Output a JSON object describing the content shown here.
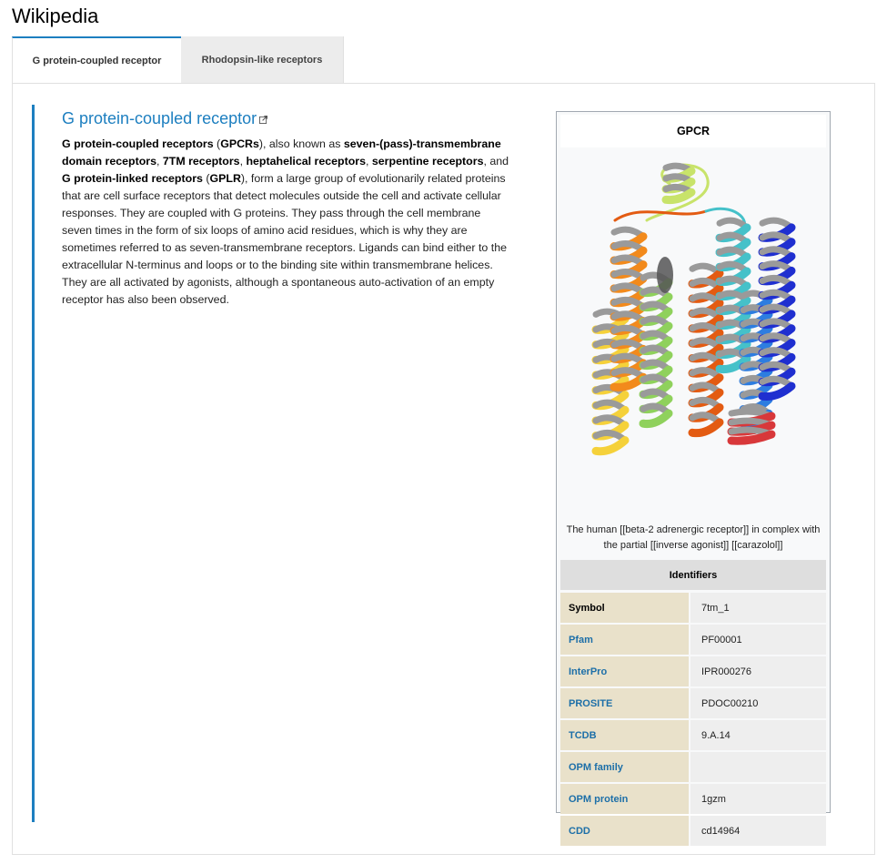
{
  "app": {
    "title": "Wikipedia"
  },
  "tabs": [
    {
      "label": "G protein-coupled receptor",
      "active": true
    },
    {
      "label": "Rhodopsin-like receptors",
      "active": false
    }
  ],
  "article": {
    "title": "G protein-coupled receptor",
    "body_parts": [
      {
        "t": "G protein-coupled receptors",
        "b": true
      },
      {
        "t": " (",
        "b": false
      },
      {
        "t": "GPCRs",
        "b": true
      },
      {
        "t": "), also known as ",
        "b": false
      },
      {
        "t": "seven-(pass)-transmembrane domain receptors",
        "b": true
      },
      {
        "t": ", ",
        "b": false
      },
      {
        "t": "7TM receptors",
        "b": true
      },
      {
        "t": ", ",
        "b": false
      },
      {
        "t": "heptahelical receptors",
        "b": true
      },
      {
        "t": ", ",
        "b": false
      },
      {
        "t": "serpentine receptors",
        "b": true
      },
      {
        "t": ", and ",
        "b": false
      },
      {
        "t": "G protein-linked receptors",
        "b": true
      },
      {
        "t": " (",
        "b": false
      },
      {
        "t": "GPLR",
        "b": true
      },
      {
        "t": "), form a large group of evolutionarily related proteins that are cell surface receptors that detect molecules outside the cell and activate cellular responses. They are coupled with G proteins. They pass through the cell membrane seven times in the form of six loops of amino acid residues, which is why they are sometimes referred to as seven-transmembrane receptors. Ligands can bind either to the extracellular N-terminus and loops or to the binding site within transmembrane helices. They are all activated by agonists, although a spontaneous auto-activation of an empty receptor has also been observed.",
        "b": false
      }
    ]
  },
  "infobox": {
    "title": "GPCR",
    "caption": "The human [[beta-2 adrenergic receptor]] in complex with the partial [[inverse agonist]] [[carazolol]]",
    "identifiers_header": "Identifiers",
    "rows": [
      {
        "key": "Symbol",
        "value": "7tm_1",
        "link": false
      },
      {
        "key": "Pfam",
        "value": "PF00001",
        "link": true
      },
      {
        "key": "InterPro",
        "value": "IPR000276",
        "link": true
      },
      {
        "key": "PROSITE",
        "value": "PDOC00210",
        "link": true
      },
      {
        "key": "TCDB",
        "value": "9.A.14",
        "link": true
      },
      {
        "key": "OPM family",
        "value": "",
        "link": true
      },
      {
        "key": "OPM protein",
        "value": "1gzm",
        "link": true
      },
      {
        "key": "CDD",
        "value": "cd14964",
        "link": true
      }
    ]
  },
  "colors": {
    "accent": "#1d7fc0",
    "helix_colors": [
      "#f5d13a",
      "#f28a1c",
      "#e35b12",
      "#8fd15c",
      "#45c1c9",
      "#2d7de0",
      "#1f2fd0",
      "#d8383a",
      "#c8e36a"
    ]
  }
}
